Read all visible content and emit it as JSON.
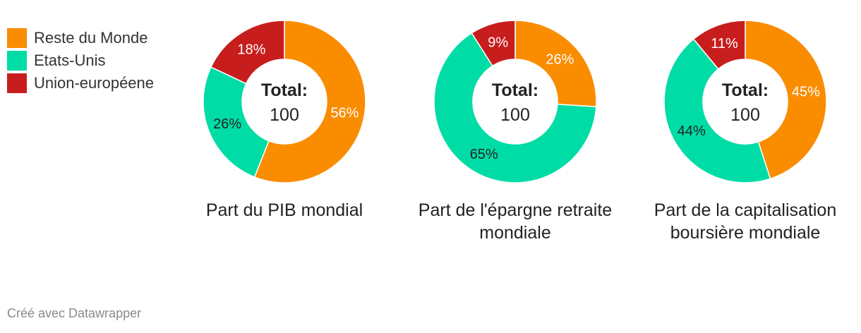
{
  "legend": {
    "items": [
      {
        "label": "Reste du Monde",
        "color": "#fa8c00"
      },
      {
        "label": "Etats-Unis",
        "color": "#00dca6"
      },
      {
        "label": "Union-européene",
        "color": "#c71e1d"
      }
    ]
  },
  "chart_data": [
    {
      "type": "pie",
      "title": "Part du PIB mondial",
      "center_title": "Total:",
      "center_value": "100",
      "slices": [
        {
          "name": "Reste du Monde",
          "value": 56,
          "label": "56%",
          "color": "#fa8c00",
          "label_color": "#ffffff"
        },
        {
          "name": "Etats-Unis",
          "value": 26,
          "label": "26%",
          "color": "#00dca6",
          "label_color": "#222222"
        },
        {
          "name": "Union-européene",
          "value": 18,
          "label": "18%",
          "color": "#c71e1d",
          "label_color": "#ffffff"
        }
      ]
    },
    {
      "type": "pie",
      "title": "Part de l'épargne retraite mondiale",
      "center_title": "Total:",
      "center_value": "100",
      "slices": [
        {
          "name": "Reste du Monde",
          "value": 26,
          "label": "26%",
          "color": "#fa8c00",
          "label_color": "#ffffff"
        },
        {
          "name": "Etats-Unis",
          "value": 65,
          "label": "65%",
          "color": "#00dca6",
          "label_color": "#222222"
        },
        {
          "name": "Union-européene",
          "value": 9,
          "label": "9%",
          "color": "#c71e1d",
          "label_color": "#ffffff"
        }
      ]
    },
    {
      "type": "pie",
      "title": "Part de la capitalisation boursière mondiale",
      "center_title": "Total:",
      "center_value": "100",
      "slices": [
        {
          "name": "Reste du Monde",
          "value": 45,
          "label": "45%",
          "color": "#fa8c00",
          "label_color": "#ffffff"
        },
        {
          "name": "Etats-Unis",
          "value": 44,
          "label": "44%",
          "color": "#00dca6",
          "label_color": "#222222"
        },
        {
          "name": "Union-européene",
          "value": 11,
          "label": "11%",
          "color": "#c71e1d",
          "label_color": "#ffffff"
        }
      ]
    }
  ],
  "footer": {
    "credit": "Créé avec Datawrapper"
  }
}
